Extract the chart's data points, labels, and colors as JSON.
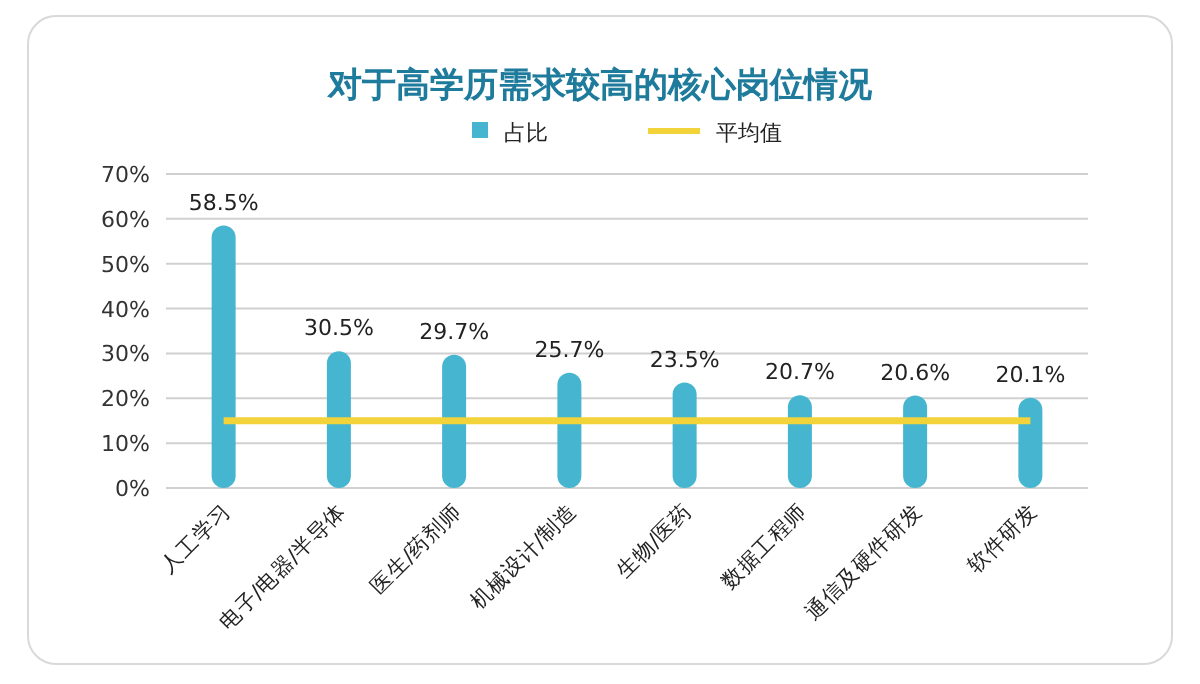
{
  "chart_data": {
    "type": "bar",
    "title": "对于高学历需求较高的核心岗位情况",
    "categories": [
      "人工学习",
      "电子/电器/半导体",
      "医生/药剂师",
      "机械设计/制造",
      "生物/医药",
      "数据工程师",
      "通信及硬件研发",
      "软件研发"
    ],
    "series": [
      {
        "name": "占比",
        "color": "#45b5d0",
        "values": [
          58.5,
          30.5,
          29.7,
          25.7,
          23.5,
          20.7,
          20.6,
          20.1
        ]
      },
      {
        "name": "平均值",
        "type": "line",
        "color": "#f2d33a",
        "values": [
          15,
          15,
          15,
          15,
          15,
          15,
          15,
          15
        ]
      }
    ],
    "ylim": [
      0,
      70
    ],
    "yticks": [
      {
        "value": 0,
        "label": "0%"
      },
      {
        "value": 10,
        "label": "10%"
      },
      {
        "value": 20,
        "label": "20%"
      },
      {
        "value": 30,
        "label": "30%"
      },
      {
        "value": 40,
        "label": "40%"
      },
      {
        "value": 50,
        "label": "50%"
      },
      {
        "value": 60,
        "label": "60%"
      },
      {
        "value": 70,
        "label": "70%"
      }
    ],
    "value_labels": [
      "58.5%",
      "30.5%",
      "29.7%",
      "25.7%",
      "23.5%",
      "20.7%",
      "20.6%",
      "20.1%"
    ],
    "grid": "y",
    "legend": "top"
  }
}
